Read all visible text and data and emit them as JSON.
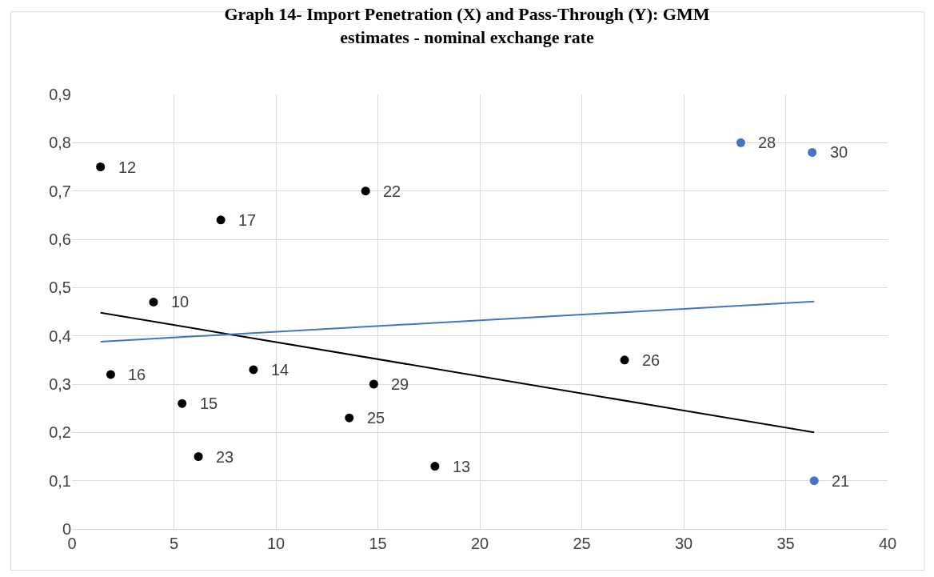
{
  "chart_data": {
    "type": "scatter",
    "title": "Graph 14- Import Penetration (X) and Pass-Through (Y): GMM\nestimates - nominal exchange rate",
    "xlim": [
      0,
      40
    ],
    "xticks": [
      0,
      5,
      10,
      15,
      20,
      25,
      30,
      35,
      40
    ],
    "ylim": [
      0,
      0.9
    ],
    "yticks": [
      {
        "value": 0,
        "label": "0"
      },
      {
        "value": 0.1,
        "label": "0,1"
      },
      {
        "value": 0.2,
        "label": "0,2"
      },
      {
        "value": 0.3,
        "label": "0,3"
      },
      {
        "value": 0.4,
        "label": "0,4"
      },
      {
        "value": 0.5,
        "label": "0,5"
      },
      {
        "value": 0.6,
        "label": "0,6"
      },
      {
        "value": 0.7,
        "label": "0,7"
      },
      {
        "value": 0.8,
        "label": "0,8"
      },
      {
        "value": 0.9,
        "label": "0,9"
      }
    ],
    "grid": true,
    "series": [
      {
        "color": "#000000",
        "marker": "circle",
        "x": [
          1.4,
          7.3,
          14.4,
          4.0,
          1.9,
          8.9,
          5.4,
          6.2,
          14.8,
          13.6,
          17.8,
          27.1
        ],
        "values": [
          0.75,
          0.64,
          0.7,
          0.47,
          0.32,
          0.33,
          0.26,
          0.15,
          0.3,
          0.23,
          0.13,
          0.35
        ]
      },
      {
        "color": "#4472c4",
        "marker": "circle",
        "x": [
          32.8,
          36.3,
          36.4
        ],
        "values": [
          0.8,
          0.78,
          0.1
        ]
      },
      {
        "type": "line",
        "color": "#000000",
        "x": [
          1.4,
          36.4
        ],
        "values": [
          0.448,
          0.2
        ]
      },
      {
        "type": "line",
        "color": "#4472c4",
        "x": [
          1.4,
          36.4
        ],
        "values": [
          0.388,
          0.471
        ]
      }
    ],
    "annotations": [
      {
        "text": "12",
        "x": 1.4,
        "y": 0.75
      },
      {
        "text": "17",
        "x": 7.3,
        "y": 0.64
      },
      {
        "text": "22",
        "x": 14.4,
        "y": 0.7
      },
      {
        "text": "10",
        "x": 4.0,
        "y": 0.47
      },
      {
        "text": "16",
        "x": 1.9,
        "y": 0.32
      },
      {
        "text": "14",
        "x": 8.9,
        "y": 0.33
      },
      {
        "text": "15",
        "x": 5.4,
        "y": 0.26
      },
      {
        "text": "23",
        "x": 6.2,
        "y": 0.15
      },
      {
        "text": "29",
        "x": 14.8,
        "y": 0.3
      },
      {
        "text": "25",
        "x": 13.6,
        "y": 0.23
      },
      {
        "text": "13",
        "x": 17.8,
        "y": 0.13
      },
      {
        "text": "26",
        "x": 27.1,
        "y": 0.35
      },
      {
        "text": "28",
        "x": 32.8,
        "y": 0.8
      },
      {
        "text": "30",
        "x": 36.3,
        "y": 0.78
      },
      {
        "text": "21",
        "x": 36.4,
        "y": 0.1
      }
    ]
  }
}
